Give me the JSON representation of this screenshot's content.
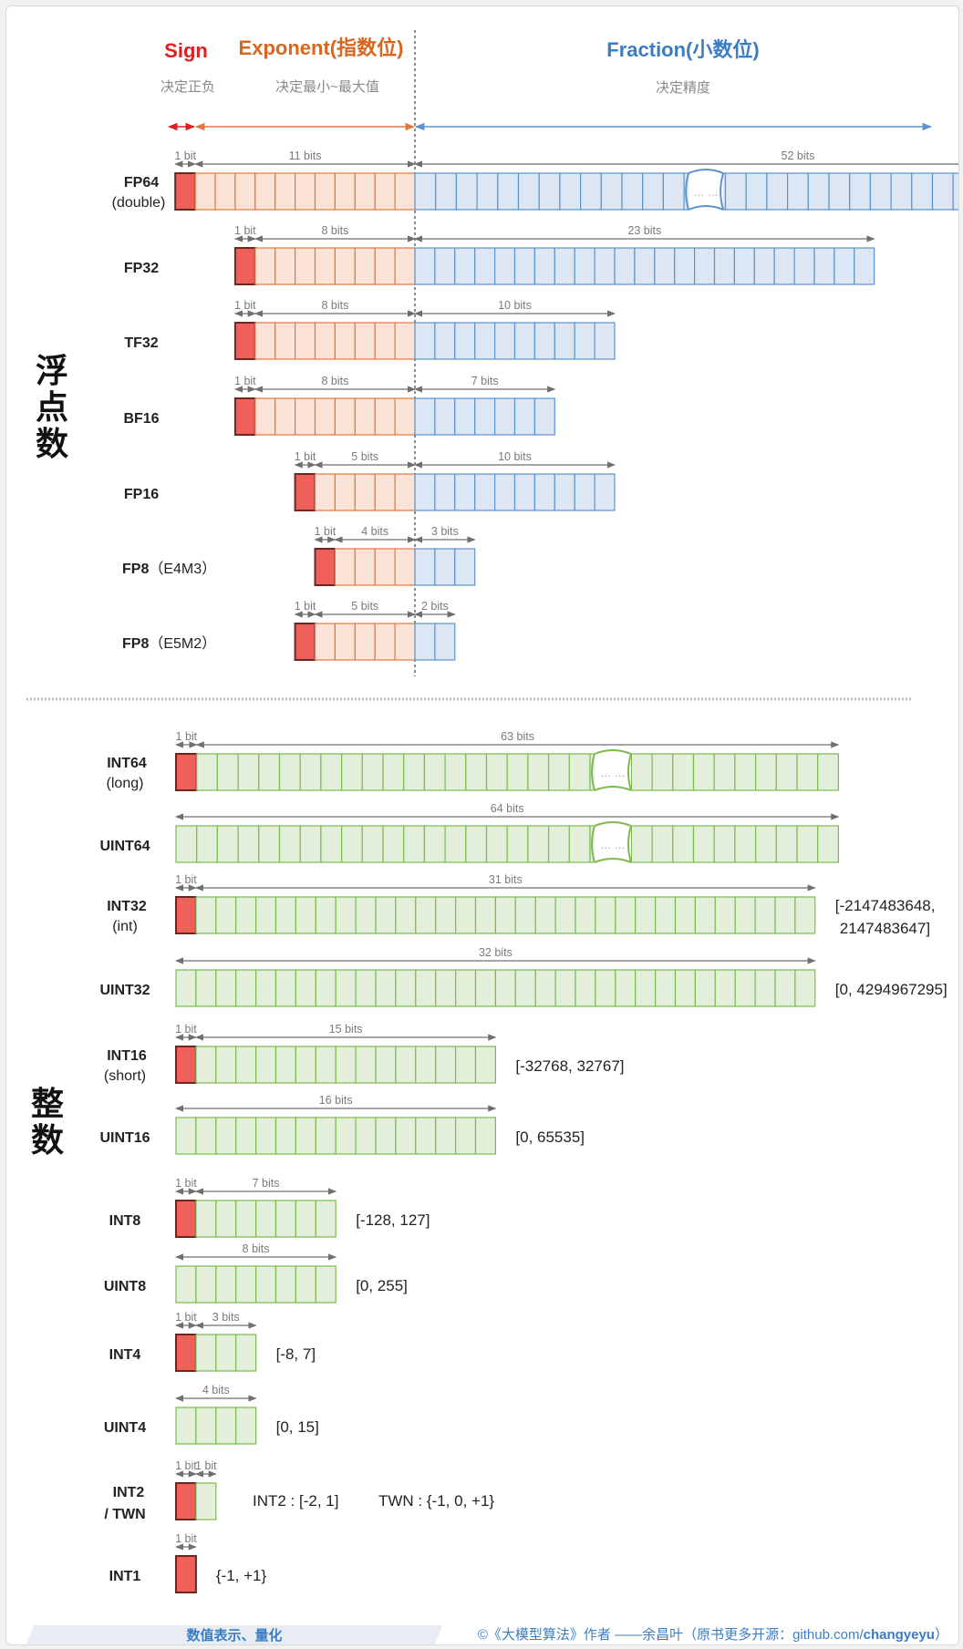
{
  "header": {
    "sign": "Sign",
    "exponent": "Exponent(指数位)",
    "fraction": "Fraction(小数位)",
    "sign_desc": "决定正负",
    "exponent_desc": "决定最小~最大值",
    "fraction_desc": "决定精度"
  },
  "sections": {
    "float": [
      "浮",
      "点",
      "数"
    ],
    "int": [
      "整",
      "数"
    ]
  },
  "float_rows": [
    {
      "name": "FP64",
      "sub": "(double)",
      "sign": 1,
      "exp": 11,
      "frac": 52,
      "sign_label": "1 bit",
      "exp_label": "11 bits",
      "frac_label": "52 bits",
      "ellipsis": "… …"
    },
    {
      "name": "FP32",
      "sign": 1,
      "exp": 8,
      "frac": 23,
      "sign_label": "1 bit",
      "exp_label": "8 bits",
      "frac_label": "23 bits"
    },
    {
      "name": "TF32",
      "sign": 1,
      "exp": 8,
      "frac": 10,
      "sign_label": "1 bit",
      "exp_label": "8 bits",
      "frac_label": "10 bits"
    },
    {
      "name": "BF16",
      "sign": 1,
      "exp": 8,
      "frac": 7,
      "sign_label": "1 bit",
      "exp_label": "8 bits",
      "frac_label": "7 bits"
    },
    {
      "name": "FP16",
      "sign": 1,
      "exp": 5,
      "frac": 10,
      "sign_label": "1 bit",
      "exp_label": "5 bits",
      "frac_label": "10 bits"
    },
    {
      "name": "FP8（E4M3）",
      "sign": 1,
      "exp": 4,
      "frac": 3,
      "sign_label": "1 bit",
      "exp_label": "4 bits",
      "frac_label": "3 bits"
    },
    {
      "name": "FP8（E5M2）",
      "sign": 1,
      "exp": 5,
      "frac": 2,
      "sign_label": "1 bit",
      "exp_label": "5 bits",
      "frac_label": "2 bits"
    }
  ],
  "int_rows": [
    {
      "name": "INT64",
      "sub": "(long)",
      "sign": 1,
      "bits": 63,
      "sign_label": "1 bit",
      "bits_label": "63 bits",
      "ellipsis": "… …"
    },
    {
      "name": "UINT64",
      "sign": 0,
      "bits": 64,
      "bits_label": "64 bits",
      "ellipsis": "… …"
    },
    {
      "name": "INT32",
      "sub": "(int)",
      "sign": 1,
      "bits": 31,
      "sign_label": "1 bit",
      "bits_label": "31 bits",
      "range": "[-2147483648,",
      "range2": "2147483647]"
    },
    {
      "name": "UINT32",
      "sign": 0,
      "bits": 32,
      "bits_label": "32 bits",
      "range": "[0, 4294967295]"
    },
    {
      "name": "INT16",
      "sub": "(short)",
      "sign": 1,
      "bits": 15,
      "sign_label": "1 bit",
      "bits_label": "15 bits",
      "range": "[-32768, 32767]"
    },
    {
      "name": "UINT16",
      "sign": 0,
      "bits": 16,
      "bits_label": "16 bits",
      "range": "[0, 65535]"
    },
    {
      "name": "INT8",
      "sign": 1,
      "bits": 7,
      "sign_label": "1 bit",
      "bits_label": "7 bits",
      "range": "[-128, 127]"
    },
    {
      "name": "UINT8",
      "sign": 0,
      "bits": 8,
      "bits_label": "8 bits",
      "range": "[0, 255]"
    },
    {
      "name": "INT4",
      "sign": 1,
      "bits": 3,
      "sign_label": "1 bit",
      "bits_label": "3 bits",
      "range": "[-8, 7]"
    },
    {
      "name": "UINT4",
      "sign": 0,
      "bits": 4,
      "bits_label": "4 bits",
      "range": "[0, 15]"
    },
    {
      "name": "INT2",
      "name2": "/ TWN",
      "sign": 1,
      "bits": 1,
      "sign_label": "1 bit",
      "bits_label": "1 bit",
      "range": "INT2 : [-2, 1]",
      "range_b": "TWN : {-1, 0, +1}"
    },
    {
      "name": "INT1",
      "sign": 1,
      "bits": 0,
      "sign_label": "1 bit",
      "range": "{-1, +1}"
    }
  ],
  "footer": {
    "left": "数值表示、量化",
    "right_prefix": "©《大模型算法》作者 ——余昌叶（原书更多开源：github.com/",
    "right_bold": "changyeyu",
    "right_suffix": "）"
  },
  "colors": {
    "sign_fill": "#f0605a",
    "sign_stroke": "#6e2620",
    "exp_fill": "#fbe3d8",
    "exp_stroke": "#e2793a",
    "frac_fill": "#dde7f4",
    "frac_stroke": "#5b93cf",
    "int_fill": "#e3efda",
    "int_stroke": "#7dbb4f",
    "sign_text": "#e02020",
    "exp_text": "#d9661f",
    "frac_text": "#3b7dc4"
  }
}
